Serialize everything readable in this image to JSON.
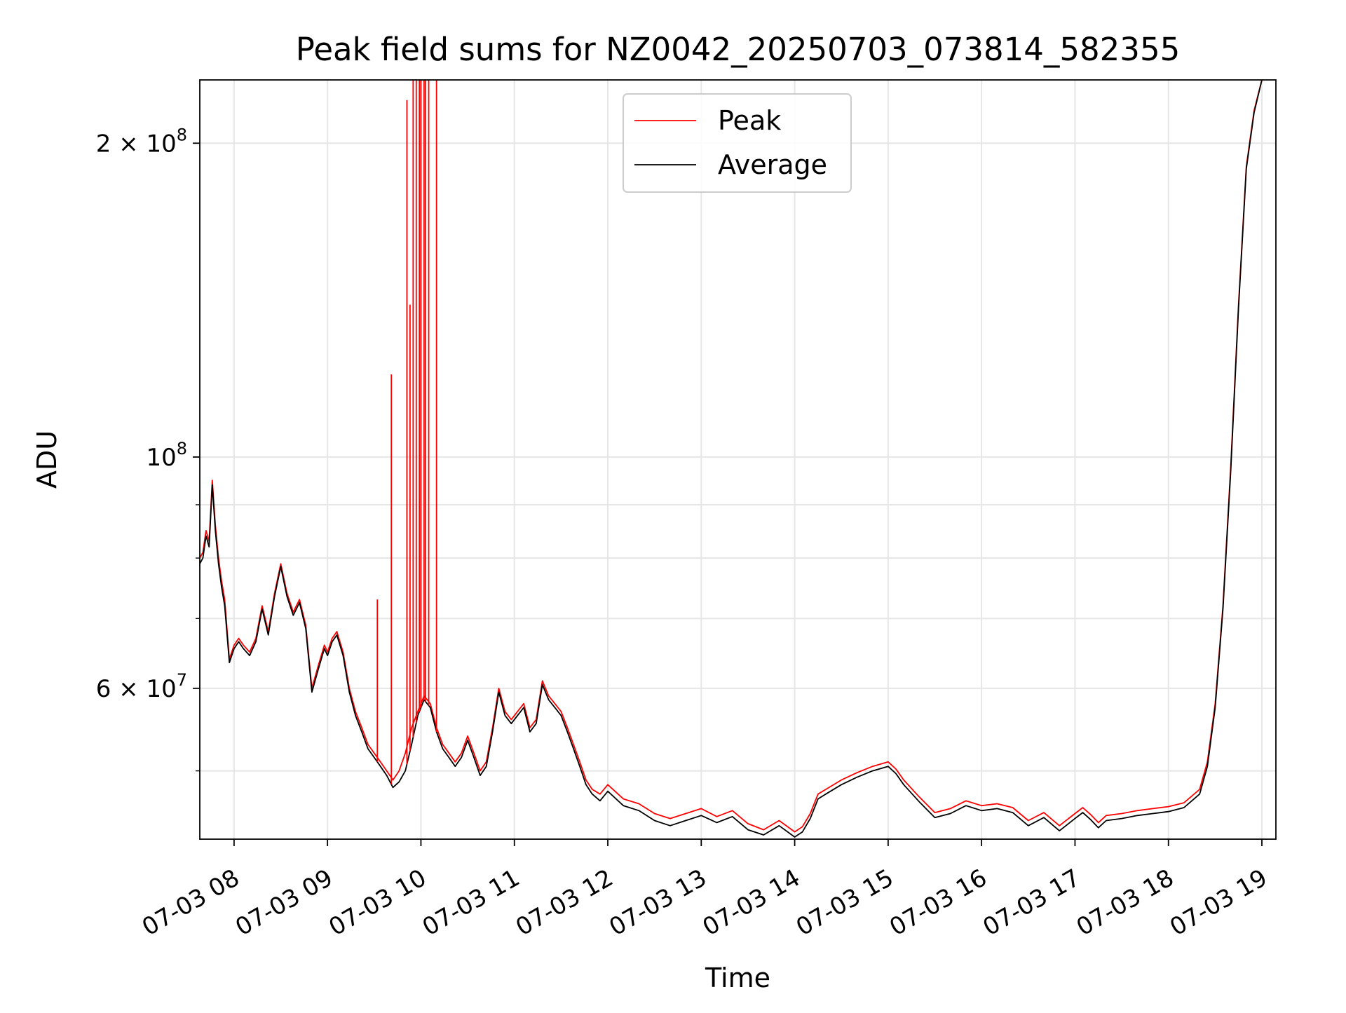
{
  "chart_data": {
    "type": "line",
    "title": "Peak field sums for NZ0042_20250703_073814_582355",
    "xlabel": "Time",
    "ylabel": "ADU",
    "yscale": "log",
    "ylim": [
      43000000,
      230000000
    ],
    "xlim": [
      "07:38",
      "19:09"
    ],
    "grid": true,
    "legend": {
      "placement": "upper center"
    },
    "x_ticks": [
      {
        "value": "08:00",
        "label": "07-03 08"
      },
      {
        "value": "09:00",
        "label": "07-03 09"
      },
      {
        "value": "10:00",
        "label": "07-03 10"
      },
      {
        "value": "11:00",
        "label": "07-03 11"
      },
      {
        "value": "12:00",
        "label": "07-03 12"
      },
      {
        "value": "13:00",
        "label": "07-03 13"
      },
      {
        "value": "14:00",
        "label": "07-03 14"
      },
      {
        "value": "15:00",
        "label": "07-03 15"
      },
      {
        "value": "16:00",
        "label": "07-03 16"
      },
      {
        "value": "17:00",
        "label": "07-03 17"
      },
      {
        "value": "18:00",
        "label": "07-03 18"
      },
      {
        "value": "19:00",
        "label": "07-03 19"
      }
    ],
    "y_major_ticks": [
      {
        "value": 60000000,
        "mantissa": "6 × 10",
        "exp": "7"
      },
      {
        "value": 100000000,
        "mantissa": "10",
        "exp": "8"
      },
      {
        "value": 200000000,
        "mantissa": "2 × 10",
        "exp": "8"
      }
    ],
    "y_minor_gridlines": [
      50000000,
      70000000,
      80000000,
      90000000
    ],
    "series": [
      {
        "name": "Peak",
        "color": "#ff0000",
        "x": [
          "07:38",
          "07:40",
          "07:42",
          "07:44",
          "07:46",
          "07:48",
          "07:50",
          "07:52",
          "07:54",
          "07:57",
          "08:00",
          "08:03",
          "08:06",
          "08:10",
          "08:14",
          "08:18",
          "08:22",
          "08:26",
          "08:30",
          "08:34",
          "08:38",
          "08:42",
          "08:46",
          "08:50",
          "08:54",
          "08:58",
          "09:00",
          "09:03",
          "09:06",
          "09:10",
          "09:14",
          "09:18",
          "09:22",
          "09:26",
          "09:30",
          "09:34",
          "09:38",
          "09:42",
          "09:46",
          "09:50",
          "09:54",
          "09:58",
          "10:02",
          "10:06",
          "10:10",
          "10:14",
          "10:18",
          "10:22",
          "10:26",
          "10:30",
          "10:34",
          "10:38",
          "10:42",
          "10:46",
          "10:50",
          "10:54",
          "10:58",
          "11:02",
          "11:06",
          "11:10",
          "11:14",
          "11:18",
          "11:22",
          "11:26",
          "11:30",
          "11:34",
          "11:38",
          "11:42",
          "11:46",
          "11:50",
          "11:55",
          "12:00",
          "12:10",
          "12:20",
          "12:30",
          "12:40",
          "12:50",
          "13:00",
          "13:10",
          "13:20",
          "13:30",
          "13:40",
          "13:50",
          "14:00",
          "14:05",
          "14:10",
          "14:15",
          "14:20",
          "14:30",
          "14:40",
          "14:50",
          "15:00",
          "15:05",
          "15:10",
          "15:20",
          "15:30",
          "15:40",
          "15:50",
          "16:00",
          "16:10",
          "16:20",
          "16:30",
          "16:40",
          "16:50",
          "17:00",
          "17:05",
          "17:10",
          "17:15",
          "17:20",
          "17:30",
          "17:40",
          "17:50",
          "18:00",
          "18:10",
          "18:20",
          "18:25",
          "18:30",
          "18:35",
          "18:40",
          "18:45",
          "18:50",
          "18:55",
          "19:00"
        ],
        "values": [
          80000000,
          81000000,
          85000000,
          83000000,
          95000000,
          86000000,
          80000000,
          76000000,
          73000000,
          64000000,
          66000000,
          67000000,
          66000000,
          65000000,
          67000000,
          72000000,
          68000000,
          74000000,
          79000000,
          74000000,
          71000000,
          73000000,
          69000000,
          60000000,
          63000000,
          66000000,
          65000000,
          67000000,
          68000000,
          65000000,
          60000000,
          57000000,
          55000000,
          53000000,
          52000000,
          51000000,
          50000000,
          49000000,
          50000000,
          52000000,
          55000000,
          57000000,
          59000000,
          58000000,
          55000000,
          53000000,
          52000000,
          51000000,
          52000000,
          54000000,
          52000000,
          50000000,
          51000000,
          55000000,
          60000000,
          57000000,
          56000000,
          57000000,
          58000000,
          55000000,
          56000000,
          61000000,
          59000000,
          58000000,
          57000000,
          55000000,
          53000000,
          51000000,
          49000000,
          48000000,
          47500000,
          48500000,
          47000000,
          46500000,
          45500000,
          45000000,
          45500000,
          46000000,
          45200000,
          45800000,
          44500000,
          43900000,
          44800000,
          43700000,
          44200000,
          45500000,
          47500000,
          48000000,
          49000000,
          49800000,
          50500000,
          51000000,
          50200000,
          49000000,
          47200000,
          45600000,
          46000000,
          46800000,
          46300000,
          46500000,
          46100000,
          44800000,
          45600000,
          44300000,
          45500000,
          46100000,
          45400000,
          44600000,
          45300000,
          45500000,
          45800000,
          46000000,
          46200000,
          46600000,
          48000000,
          51000000,
          58000000,
          72000000,
          98000000,
          140000000,
          190000000,
          215000000,
          235000000
        ]
      },
      {
        "name": "Average",
        "color": "#000000",
        "x": [
          "07:38",
          "07:40",
          "07:42",
          "07:44",
          "07:46",
          "07:48",
          "07:50",
          "07:52",
          "07:54",
          "07:57",
          "08:00",
          "08:03",
          "08:06",
          "08:10",
          "08:14",
          "08:18",
          "08:22",
          "08:26",
          "08:30",
          "08:34",
          "08:38",
          "08:42",
          "08:46",
          "08:50",
          "08:54",
          "08:58",
          "09:00",
          "09:03",
          "09:06",
          "09:10",
          "09:14",
          "09:18",
          "09:22",
          "09:26",
          "09:30",
          "09:34",
          "09:38",
          "09:42",
          "09:46",
          "09:50",
          "09:54",
          "09:58",
          "10:02",
          "10:06",
          "10:10",
          "10:14",
          "10:18",
          "10:22",
          "10:26",
          "10:30",
          "10:34",
          "10:38",
          "10:42",
          "10:46",
          "10:50",
          "10:54",
          "10:58",
          "11:02",
          "11:06",
          "11:10",
          "11:14",
          "11:18",
          "11:22",
          "11:26",
          "11:30",
          "11:34",
          "11:38",
          "11:42",
          "11:46",
          "11:50",
          "11:55",
          "12:00",
          "12:10",
          "12:20",
          "12:30",
          "12:40",
          "12:50",
          "13:00",
          "13:10",
          "13:20",
          "13:30",
          "13:40",
          "13:50",
          "14:00",
          "14:05",
          "14:10",
          "14:15",
          "14:20",
          "14:30",
          "14:40",
          "14:50",
          "15:00",
          "15:05",
          "15:10",
          "15:20",
          "15:30",
          "15:40",
          "15:50",
          "16:00",
          "16:10",
          "16:20",
          "16:30",
          "16:40",
          "16:50",
          "17:00",
          "17:05",
          "17:10",
          "17:15",
          "17:20",
          "17:30",
          "17:40",
          "17:50",
          "18:00",
          "18:10",
          "18:20",
          "18:25",
          "18:30",
          "18:35",
          "18:40",
          "18:45",
          "18:50",
          "18:55",
          "19:00"
        ],
        "values": [
          79000000,
          80000000,
          84000000,
          82000000,
          94000000,
          85000000,
          79000000,
          75000000,
          72000000,
          63500000,
          65500000,
          66500000,
          65500000,
          64500000,
          66500000,
          71500000,
          67500000,
          73500000,
          78500000,
          73500000,
          70500000,
          72500000,
          68500000,
          59500000,
          62500000,
          65500000,
          64500000,
          66500000,
          67500000,
          64500000,
          59500000,
          56500000,
          54500000,
          52500000,
          51500000,
          50500000,
          49500000,
          48200000,
          48800000,
          50000000,
          53000000,
          56500000,
          58500000,
          57500000,
          54500000,
          52500000,
          51500000,
          50500000,
          51500000,
          53500000,
          51500000,
          49500000,
          50500000,
          54500000,
          59500000,
          56500000,
          55500000,
          56500000,
          57500000,
          54500000,
          55500000,
          60500000,
          58500000,
          57500000,
          56500000,
          54500000,
          52500000,
          50500000,
          48500000,
          47500000,
          46800000,
          47800000,
          46300000,
          45800000,
          44800000,
          44300000,
          44800000,
          45300000,
          44600000,
          45200000,
          43900000,
          43400000,
          44300000,
          43200000,
          43700000,
          45000000,
          47000000,
          47500000,
          48500000,
          49300000,
          50000000,
          50500000,
          49700000,
          48500000,
          46700000,
          45100000,
          45500000,
          46300000,
          45800000,
          46000000,
          45600000,
          44300000,
          45100000,
          43800000,
          45000000,
          45600000,
          44900000,
          44100000,
          44800000,
          45000000,
          45300000,
          45500000,
          45700000,
          46100000,
          47500000,
          50500000,
          57500000,
          71500000,
          97000000,
          139000000,
          189000000,
          214000000,
          234000000
        ]
      }
    ],
    "peak_spikes": [
      {
        "x": "09:32",
        "value": 73000000
      },
      {
        "x": "09:41",
        "value": 120000000
      },
      {
        "x": "09:51",
        "value": 220000000
      },
      {
        "x": "09:53",
        "value": 140000000
      },
      {
        "x": "09:55",
        "value": 240000000
      },
      {
        "x": "09:57",
        "value": 240000000
      },
      {
        "x": "09:59",
        "value": 240000000
      },
      {
        "x": "10:00",
        "value": 240000000
      },
      {
        "x": "10:02",
        "value": 240000000
      },
      {
        "x": "10:03",
        "value": 240000000
      },
      {
        "x": "10:05",
        "value": 240000000
      },
      {
        "x": "10:10",
        "value": 240000000
      }
    ]
  }
}
